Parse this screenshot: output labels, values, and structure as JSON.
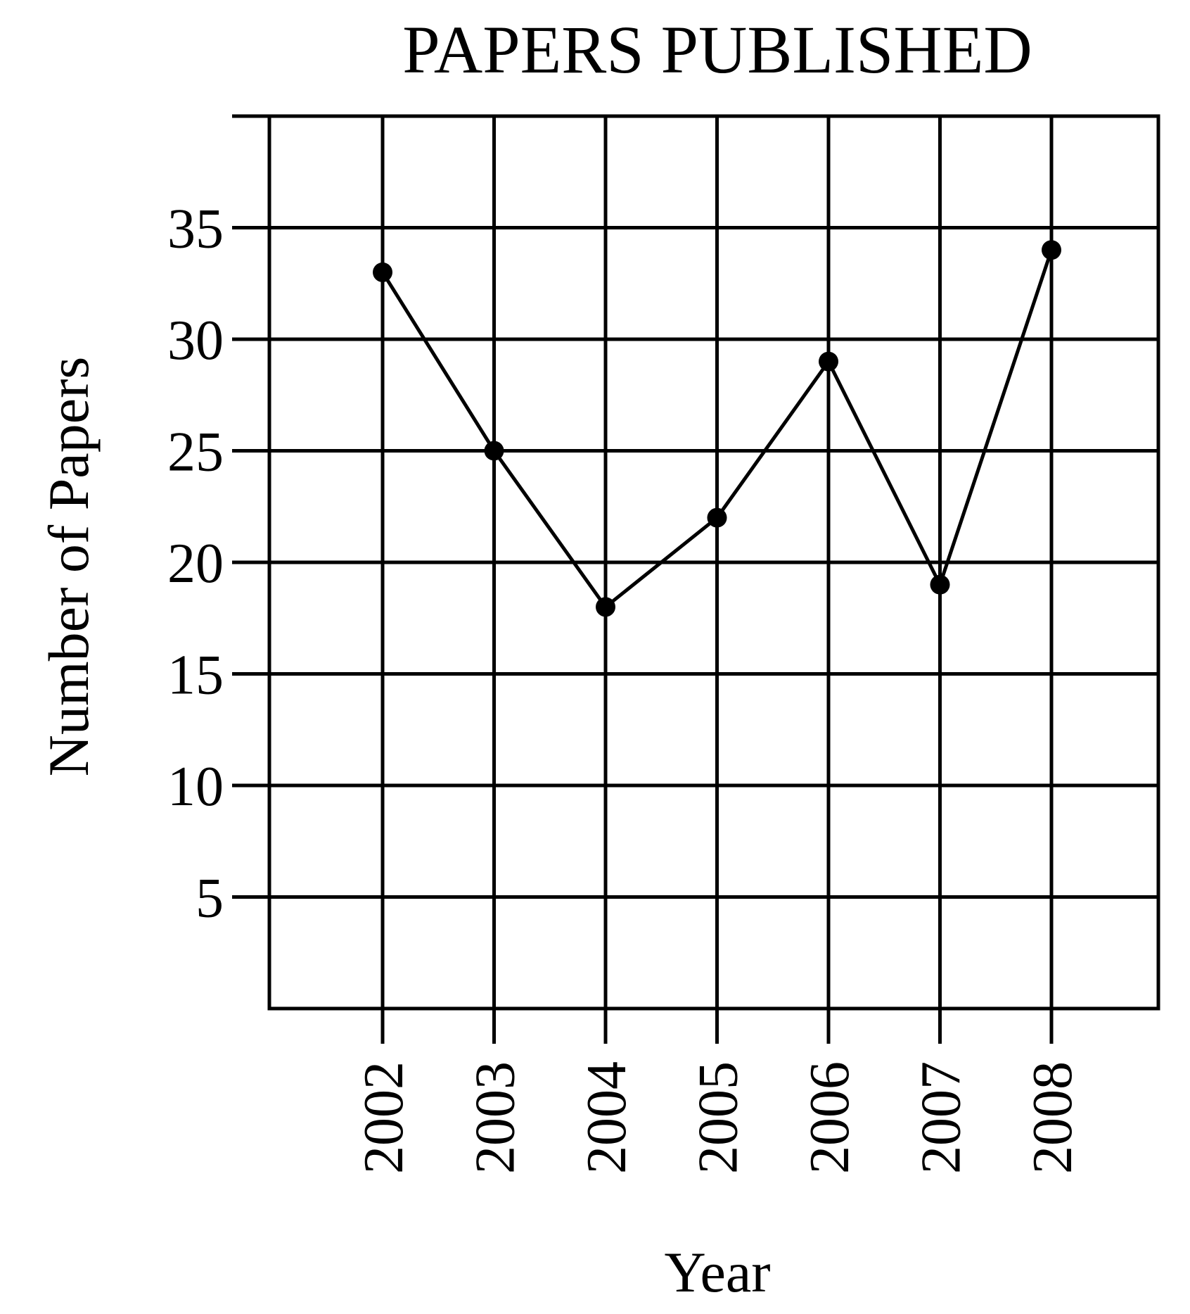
{
  "chart_data": {
    "type": "line",
    "title": "PAPERS PUBLISHED",
    "xlabel": "Year",
    "ylabel": "Number of Papers",
    "categories": [
      "2002",
      "2003",
      "2004",
      "2005",
      "2006",
      "2007",
      "2008"
    ],
    "series": [
      {
        "values": [
          33,
          25,
          18,
          22,
          29,
          19,
          34
        ]
      }
    ],
    "yticks": [
      5,
      10,
      15,
      20,
      25,
      30,
      35
    ],
    "ylim": [
      0,
      40
    ],
    "grid": true,
    "legend": "none",
    "colors": {
      "line": "#000000",
      "grid": "#000000",
      "background": "#ffffff"
    }
  }
}
